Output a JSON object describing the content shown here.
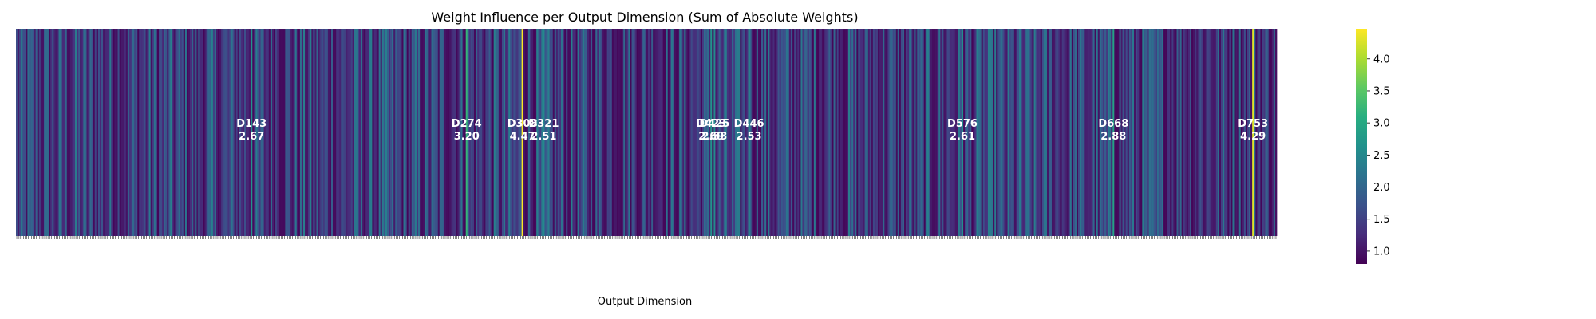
{
  "chart_data": {
    "type": "heatmap",
    "title": "Weight Influence per Output Dimension (Sum of Absolute Weights)",
    "xlabel": "Output Dimension",
    "ylabel": "",
    "n_dims": 768,
    "colormap": "viridis",
    "colorbar": {
      "min": 0.8,
      "max": 4.47,
      "ticks": [
        "1.0",
        "1.5",
        "2.0",
        "2.5",
        "3.0",
        "3.5",
        "4.0"
      ]
    },
    "annotations": [
      {
        "dim": 143,
        "label": "D143",
        "value": 2.67,
        "value_label": "2.67"
      },
      {
        "dim": 274,
        "label": "D274",
        "value": 3.2,
        "value_label": "3.20"
      },
      {
        "dim": 308,
        "label": "D308",
        "value": 4.47,
        "value_label": "4.47"
      },
      {
        "dim": 321,
        "label": "D321",
        "value": 2.51,
        "value_label": "2.51"
      },
      {
        "dim": 423,
        "label": "D423",
        "value": 2.69,
        "value_label": "2.69"
      },
      {
        "dim": 425,
        "label": "D425",
        "value": 2.53,
        "value_label": "2.53"
      },
      {
        "dim": 446,
        "label": "D446",
        "value": 2.53,
        "value_label": "2.53"
      },
      {
        "dim": 576,
        "label": "D576",
        "value": 2.61,
        "value_label": "2.61"
      },
      {
        "dim": 668,
        "label": "D668",
        "value": 2.88,
        "value_label": "2.88"
      },
      {
        "dim": 753,
        "label": "D753",
        "value": 4.29,
        "value_label": "4.29"
      }
    ],
    "background_value_range": [
      0.85,
      2.4
    ],
    "grid": false,
    "legend": "colorbar-right"
  }
}
